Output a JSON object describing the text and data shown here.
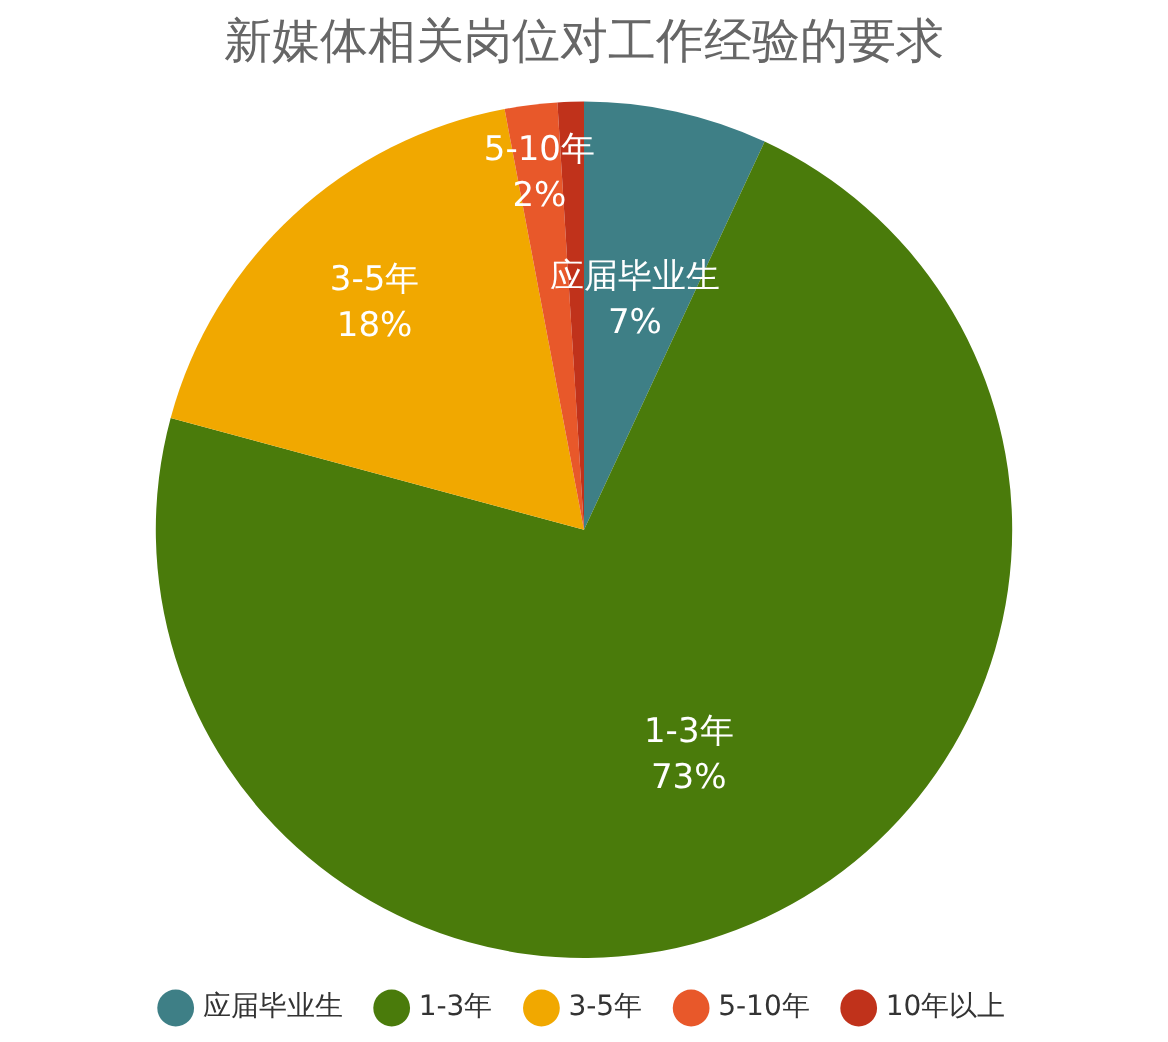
{
  "chart_data": {
    "type": "pie",
    "title": "新媒体相关岗位对工作经验的要求",
    "categories": [
      "应届毕业生",
      "1-3年",
      "3-5年",
      "5-10年",
      "10年以上"
    ],
    "values": [
      7,
      73,
      18,
      2,
      1
    ],
    "value_labels": [
      "7%",
      "73%",
      "18%",
      "2%",
      null
    ],
    "colors": [
      "#3e7f86",
      "#4a7b0b",
      "#f1a800",
      "#e8582a",
      "#c0321b"
    ],
    "legend": "bottom"
  }
}
